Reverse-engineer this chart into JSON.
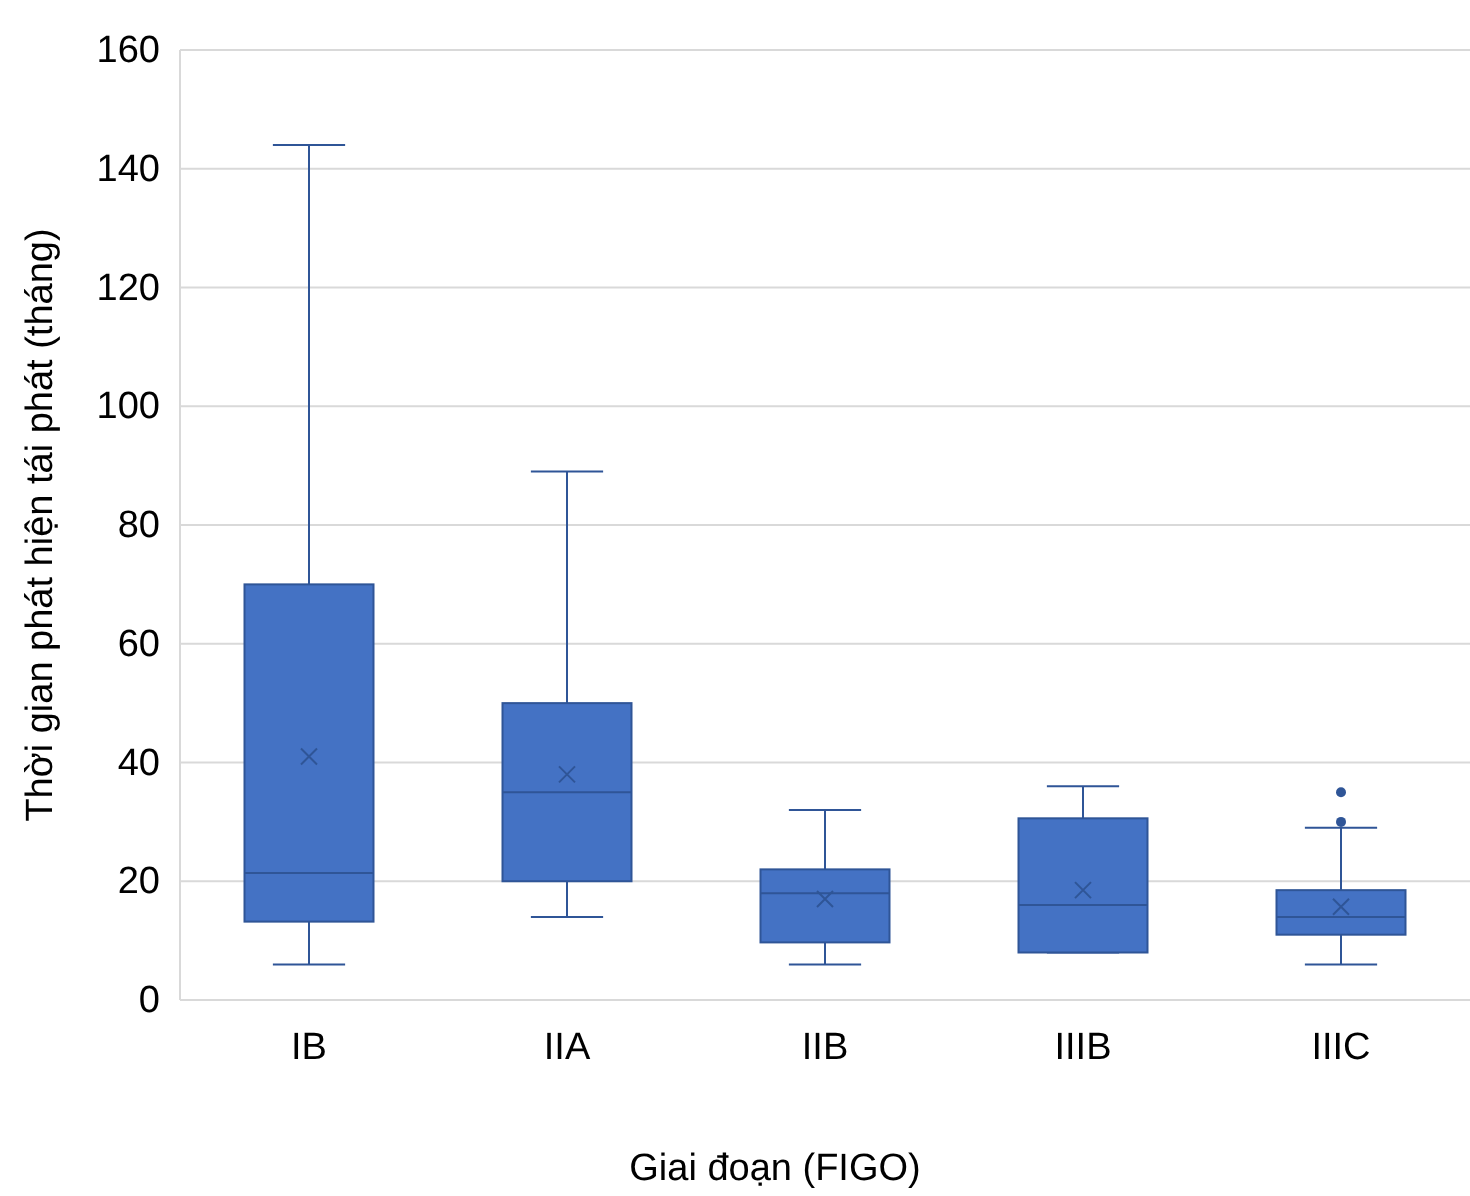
{
  "chart_data": {
    "type": "box",
    "xlabel": "Giai đoạn (FIGO)",
    "ylabel": "Thời gian phát hiện tái phát (tháng)",
    "categories": [
      "IB",
      "IIA",
      "IIB",
      "IIIB",
      "IIIC"
    ],
    "color": "#4472c4",
    "ylim": [
      0,
      160
    ],
    "yticks": [
      0,
      20,
      40,
      60,
      80,
      100,
      120,
      140,
      160
    ],
    "grid": "y",
    "boxes": [
      {
        "low": 6,
        "q1": 13.2,
        "median": 21.4,
        "q3": 70,
        "high": 144,
        "mean": 41
      },
      {
        "low": 14,
        "q1": 20,
        "median": 35,
        "q3": 50,
        "high": 89,
        "mean": 38
      },
      {
        "low": 6,
        "q1": 9.7,
        "median": 18,
        "q3": 22,
        "high": 32,
        "mean": 17
      },
      {
        "low": 8,
        "q1": 8,
        "median": 16,
        "q3": 30.6,
        "high": 36,
        "mean": 18.5
      },
      {
        "low": 6,
        "q1": 11,
        "median": 14,
        "q3": 18.5,
        "high": 29,
        "mean": 15.7,
        "outliers": [
          30,
          35
        ]
      }
    ]
  }
}
